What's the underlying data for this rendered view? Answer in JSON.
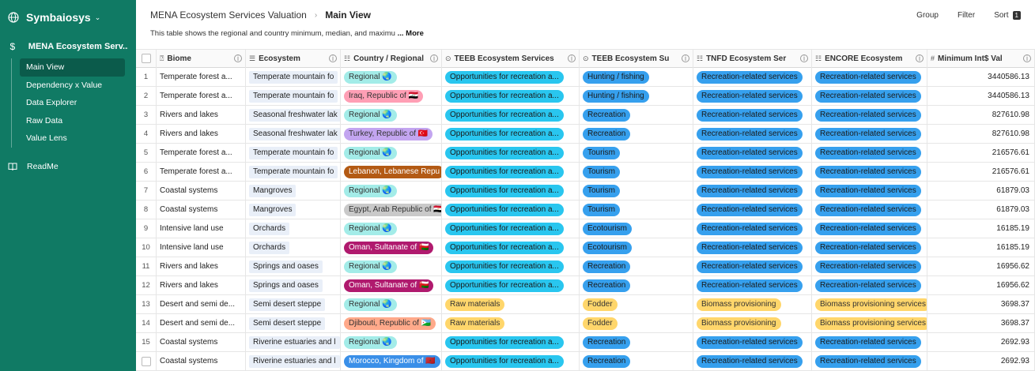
{
  "sidebar": {
    "workspace": "Symbaiosys",
    "app_icon": "dollar-icon",
    "app_name": "MENA Ecosystem Serv...",
    "views": [
      "Main View",
      "Dependency x Value",
      "Data Explorer",
      "Raw Data",
      "Value Lens"
    ],
    "active_view": "Main View",
    "readme": "ReadMe",
    "bg_color": "#107a64"
  },
  "header": {
    "breadcrumb_parent": "MENA Ecosystem Services Valuation",
    "breadcrumb_current": "Main View",
    "group": "Group",
    "filter": "Filter",
    "sort": "Sort",
    "sort_count": "1",
    "description": "This table shows the regional and country minimum, median, and maximu",
    "more": "... More"
  },
  "columns": [
    "Biome",
    "Ecosystem",
    "Country / Regional",
    "TEEB Ecosystem Services",
    "TEEB Ecosystem Su",
    "TNFD Ecosystem Ser",
    "ENCORE Ecosystem",
    "Minimum Int$ Val"
  ],
  "rows": [
    {
      "num": "1",
      "biome": "Temperate forest a...",
      "ecosystem": "Temperate mountain fo",
      "country": "Regional 🌏",
      "country_bg": "#a3ece8",
      "country_fg": "#333",
      "teeb": "Opportunities for recreation a...",
      "teeb_sub": "Hunting / fishing",
      "teeb_sub_bg": "#36a0ee",
      "tnfd": "Recreation-related services",
      "tnfd_bg": "#36a0ee",
      "encore": "Recreation-related services",
      "encore_bg": "#36a0ee",
      "value": "3440586.13"
    },
    {
      "num": "2",
      "biome": "Temperate forest a...",
      "ecosystem": "Temperate mountain fo",
      "country": "Iraq, Republic of 🇮🇶",
      "country_bg": "#ff9fb5",
      "country_fg": "#333",
      "teeb": "Opportunities for recreation a...",
      "teeb_sub": "Hunting / fishing",
      "teeb_sub_bg": "#36a0ee",
      "tnfd": "Recreation-related services",
      "tnfd_bg": "#36a0ee",
      "encore": "Recreation-related services",
      "encore_bg": "#36a0ee",
      "value": "3440586.13"
    },
    {
      "num": "3",
      "biome": "Rivers and lakes",
      "ecosystem": "Seasonal freshwater lak",
      "country": "Regional 🌏",
      "country_bg": "#a3ece8",
      "country_fg": "#333",
      "teeb": "Opportunities for recreation a...",
      "teeb_sub": "Recreation",
      "teeb_sub_bg": "#36a0ee",
      "tnfd": "Recreation-related services",
      "tnfd_bg": "#36a0ee",
      "encore": "Recreation-related services",
      "encore_bg": "#36a0ee",
      "value": "827610.98"
    },
    {
      "num": "4",
      "biome": "Rivers and lakes",
      "ecosystem": "Seasonal freshwater lak",
      "country": "Turkey, Republic of 🇹🇷",
      "country_bg": "#c3a5f0",
      "country_fg": "#333",
      "teeb": "Opportunities for recreation a...",
      "teeb_sub": "Recreation",
      "teeb_sub_bg": "#36a0ee",
      "tnfd": "Recreation-related services",
      "tnfd_bg": "#36a0ee",
      "encore": "Recreation-related services",
      "encore_bg": "#36a0ee",
      "value": "827610.98"
    },
    {
      "num": "5",
      "biome": "Temperate forest a...",
      "ecosystem": "Temperate mountain fo",
      "country": "Regional 🌏",
      "country_bg": "#a3ece8",
      "country_fg": "#333",
      "teeb": "Opportunities for recreation a...",
      "teeb_sub": "Tourism",
      "teeb_sub_bg": "#36a0ee",
      "tnfd": "Recreation-related services",
      "tnfd_bg": "#36a0ee",
      "encore": "Recreation-related services",
      "encore_bg": "#36a0ee",
      "value": "216576.61"
    },
    {
      "num": "6",
      "biome": "Temperate forest a...",
      "ecosystem": "Temperate mountain fo",
      "country": "Lebanon, Lebanese Repu",
      "country_bg": "#b35a14",
      "country_fg": "#fff",
      "teeb": "Opportunities for recreation a...",
      "teeb_sub": "Tourism",
      "teeb_sub_bg": "#36a0ee",
      "tnfd": "Recreation-related services",
      "tnfd_bg": "#36a0ee",
      "encore": "Recreation-related services",
      "encore_bg": "#36a0ee",
      "value": "216576.61"
    },
    {
      "num": "7",
      "biome": "Coastal systems",
      "ecosystem": "Mangroves",
      "country": "Regional 🌏",
      "country_bg": "#a3ece8",
      "country_fg": "#333",
      "teeb": "Opportunities for recreation a...",
      "teeb_sub": "Tourism",
      "teeb_sub_bg": "#36a0ee",
      "tnfd": "Recreation-related services",
      "tnfd_bg": "#36a0ee",
      "encore": "Recreation-related services",
      "encore_bg": "#36a0ee",
      "value": "61879.03"
    },
    {
      "num": "8",
      "biome": "Coastal systems",
      "ecosystem": "Mangroves",
      "country": "Egypt, Arab Republic of 🇪🇬",
      "country_bg": "#c9c9c9",
      "country_fg": "#333",
      "teeb": "Opportunities for recreation a...",
      "teeb_sub": "Tourism",
      "teeb_sub_bg": "#36a0ee",
      "tnfd": "Recreation-related services",
      "tnfd_bg": "#36a0ee",
      "encore": "Recreation-related services",
      "encore_bg": "#36a0ee",
      "value": "61879.03"
    },
    {
      "num": "9",
      "biome": "Intensive land use",
      "ecosystem": "Orchards",
      "country": "Regional 🌏",
      "country_bg": "#a3ece8",
      "country_fg": "#333",
      "teeb": "Opportunities for recreation a...",
      "teeb_sub": "Ecotourism",
      "teeb_sub_bg": "#36a0ee",
      "tnfd": "Recreation-related services",
      "tnfd_bg": "#36a0ee",
      "encore": "Recreation-related services",
      "encore_bg": "#36a0ee",
      "value": "16185.19"
    },
    {
      "num": "10",
      "biome": "Intensive land use",
      "ecosystem": "Orchards",
      "country": "Oman, Sultanate of 🇴🇲",
      "country_bg": "#b01a6e",
      "country_fg": "#fff",
      "teeb": "Opportunities for recreation a...",
      "teeb_sub": "Ecotourism",
      "teeb_sub_bg": "#36a0ee",
      "tnfd": "Recreation-related services",
      "tnfd_bg": "#36a0ee",
      "encore": "Recreation-related services",
      "encore_bg": "#36a0ee",
      "value": "16185.19"
    },
    {
      "num": "11",
      "biome": "Rivers and lakes",
      "ecosystem": "Springs and oases",
      "country": "Regional 🌏",
      "country_bg": "#a3ece8",
      "country_fg": "#333",
      "teeb": "Opportunities for recreation a...",
      "teeb_sub": "Recreation",
      "teeb_sub_bg": "#36a0ee",
      "tnfd": "Recreation-related services",
      "tnfd_bg": "#36a0ee",
      "encore": "Recreation-related services",
      "encore_bg": "#36a0ee",
      "value": "16956.62"
    },
    {
      "num": "12",
      "biome": "Rivers and lakes",
      "ecosystem": "Springs and oases",
      "country": "Oman, Sultanate of 🇴🇲",
      "country_bg": "#b01a6e",
      "country_fg": "#fff",
      "teeb": "Opportunities for recreation a...",
      "teeb_sub": "Recreation",
      "teeb_sub_bg": "#36a0ee",
      "tnfd": "Recreation-related services",
      "tnfd_bg": "#36a0ee",
      "encore": "Recreation-related services",
      "encore_bg": "#36a0ee",
      "value": "16956.62"
    },
    {
      "num": "13",
      "biome": "Desert and semi de...",
      "ecosystem": "Semi desert steppe",
      "country": "Regional 🌏",
      "country_bg": "#a3ece8",
      "country_fg": "#333",
      "teeb": "Raw materials",
      "teeb_bg": "#ffd66b",
      "teeb_fg": "#333",
      "teeb_sub": "Fodder",
      "teeb_sub_bg": "#ffd66b",
      "teeb_sub_fg": "#333",
      "tnfd": "Biomass provisioning",
      "tnfd_bg": "#ffd66b",
      "tnfd_fg": "#333",
      "encore": "Biomass provisioning services",
      "encore_bg": "#ffd66b",
      "encore_fg": "#333",
      "value": "3698.37"
    },
    {
      "num": "14",
      "biome": "Desert and semi de...",
      "ecosystem": "Semi desert steppe",
      "country": "Djibouti, Republic of 🇩🇯",
      "country_bg": "#ffa98a",
      "country_fg": "#333",
      "teeb": "Raw materials",
      "teeb_bg": "#ffd66b",
      "teeb_fg": "#333",
      "teeb_sub": "Fodder",
      "teeb_sub_bg": "#ffd66b",
      "teeb_sub_fg": "#333",
      "tnfd": "Biomass provisioning",
      "tnfd_bg": "#ffd66b",
      "tnfd_fg": "#333",
      "encore": "Biomass provisioning services",
      "encore_bg": "#ffd66b",
      "encore_fg": "#333",
      "value": "3698.37"
    },
    {
      "num": "15",
      "biome": "Coastal systems",
      "ecosystem": "Riverine estuaries and l",
      "country": "Regional 🌏",
      "country_bg": "#a3ece8",
      "country_fg": "#333",
      "teeb": "Opportunities for recreation a...",
      "teeb_sub": "Recreation",
      "teeb_sub_bg": "#36a0ee",
      "tnfd": "Recreation-related services",
      "tnfd_bg": "#36a0ee",
      "encore": "Recreation-related services",
      "encore_bg": "#36a0ee",
      "value": "2692.93"
    },
    {
      "num": "",
      "checkbox": true,
      "biome": "Coastal systems",
      "ecosystem": "Riverine estuaries and l",
      "country": "Morocco, Kingdom of 🇲🇦",
      "country_bg": "#3a8fe8",
      "country_fg": "#fff",
      "teeb": "Opportunities for recreation a...",
      "teeb_sub": "Recreation",
      "teeb_sub_bg": "#36a0ee",
      "tnfd": "Recreation-related services",
      "tnfd_bg": "#36a0ee",
      "encore": "Recreation-related services",
      "encore_bg": "#36a0ee",
      "value": "2692.93"
    }
  ]
}
